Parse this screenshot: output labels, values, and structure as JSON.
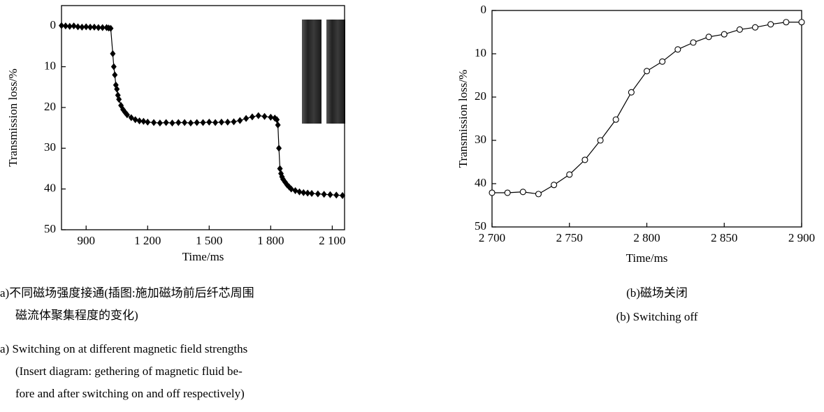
{
  "chart_data": [
    {
      "type": "line",
      "x_label": "Time/ms",
      "y_label": "Transmission loss/%",
      "xlim": [
        780,
        2160
      ],
      "ylim": [
        -5,
        50
      ],
      "y_inverted": true,
      "xticks": [
        900,
        {
          "value": 1200,
          "label": "1 200"
        },
        {
          "value": 1500,
          "label": "1 500"
        },
        {
          "value": 1800,
          "label": "1 800"
        },
        {
          "value": 2100,
          "label": "2 100"
        }
      ],
      "yticks": [
        0,
        10,
        20,
        30,
        40,
        50
      ],
      "x": [
        780,
        800,
        820,
        840,
        860,
        880,
        900,
        920,
        940,
        960,
        980,
        1000,
        1010,
        1020,
        1030,
        1035,
        1040,
        1045,
        1050,
        1055,
        1060,
        1070,
        1080,
        1090,
        1100,
        1120,
        1140,
        1160,
        1180,
        1200,
        1230,
        1260,
        1290,
        1320,
        1350,
        1380,
        1410,
        1440,
        1470,
        1500,
        1530,
        1560,
        1590,
        1620,
        1650,
        1680,
        1710,
        1740,
        1770,
        1800,
        1820,
        1830,
        1835,
        1840,
        1845,
        1850,
        1855,
        1860,
        1870,
        1880,
        1890,
        1900,
        1920,
        1940,
        1960,
        1980,
        2000,
        2030,
        2060,
        2090,
        2120,
        2150
      ],
      "series": [
        {
          "color": "#000000",
          "marker": "diamond",
          "values": [
            -0.1,
            0,
            0.1,
            0,
            0.2,
            0.3,
            0.2,
            0.3,
            0.3,
            0.4,
            0.4,
            0.4,
            0.5,
            0.6,
            6.8,
            10,
            12,
            14.5,
            15.5,
            17,
            18,
            19.5,
            20.5,
            21.2,
            21.8,
            22.5,
            23,
            23.3,
            23.4,
            23.6,
            23.7,
            23.8,
            23.7,
            23.8,
            23.7,
            23.7,
            23.8,
            23.7,
            23.7,
            23.6,
            23.7,
            23.6,
            23.6,
            23.5,
            23.2,
            22.7,
            22.3,
            22,
            22.2,
            22.4,
            22.6,
            23,
            24.3,
            30,
            35,
            36.2,
            37,
            37.6,
            38.3,
            39,
            39.5,
            40,
            40.4,
            40.7,
            40.9,
            41,
            41.1,
            41.2,
            41.3,
            41.4,
            41.5,
            41.6
          ]
        }
      ],
      "caption_zh": [
        "a)不同磁场强度接通(插图:施加磁场前后纤芯周围",
        "磁流体聚集程度的变化)"
      ],
      "caption_en": [
        "a) Switching on at different magnetic field strengths",
        "(Insert diagram: gethering of magnetic fluid be-",
        "fore and after switching on and off respectively)"
      ]
    },
    {
      "type": "line",
      "x_label": "Time/ms",
      "y_label": "Transmission loss/%",
      "xlim": [
        2700,
        2900
      ],
      "ylim": [
        0,
        50
      ],
      "y_inverted": true,
      "xticks": [
        {
          "value": 2700,
          "label": "2 700"
        },
        {
          "value": 2750,
          "label": "2 750"
        },
        {
          "value": 2800,
          "label": "2 800"
        },
        {
          "value": 2850,
          "label": "2 850"
        },
        {
          "value": 2900,
          "label": "2 900"
        }
      ],
      "yticks": [
        0,
        10,
        20,
        30,
        40,
        50
      ],
      "x": [
        2700,
        2710,
        2720,
        2730,
        2740,
        2750,
        2760,
        2770,
        2780,
        2790,
        2800,
        2810,
        2820,
        2830,
        2840,
        2850,
        2860,
        2870,
        2880,
        2890,
        2900
      ],
      "series": [
        {
          "color": "#000000",
          "marker": "circle",
          "values": [
            42.1,
            42.1,
            41.9,
            42.4,
            40.3,
            37.9,
            34.5,
            30,
            25.2,
            18.9,
            14,
            11.8,
            9,
            7.4,
            6.1,
            5.5,
            4.4,
            3.9,
            3.2,
            2.7,
            2.7
          ]
        }
      ],
      "caption_zh": [
        "(b)磁场关闭"
      ],
      "caption_en": [
        "(b) Switching off"
      ]
    }
  ]
}
